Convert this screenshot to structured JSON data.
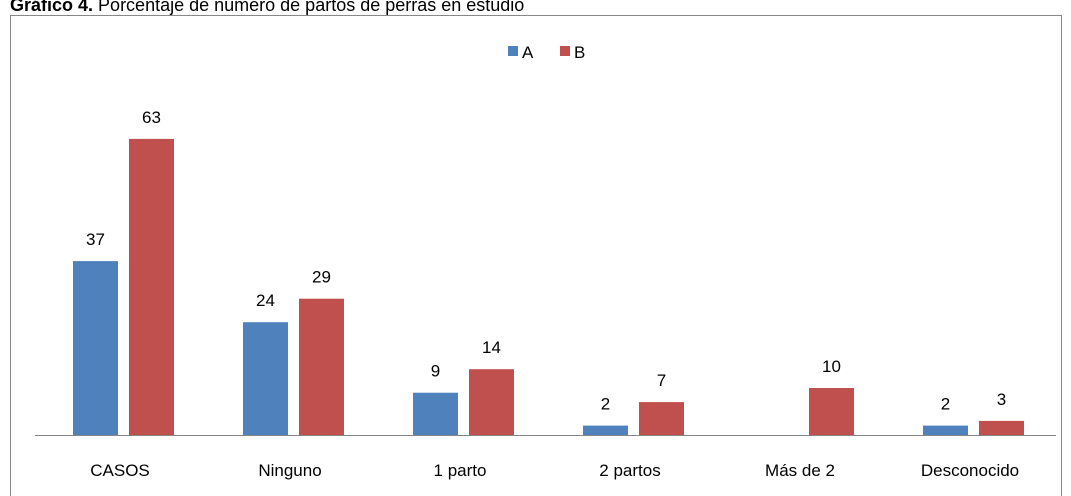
{
  "chart_data": {
    "type": "bar",
    "title_prefix": "Gráfico 4.",
    "title": "Porcentaje de número de partos de perras en estudio",
    "categories": [
      "CASOS",
      "Ninguno",
      "1 parto",
      "2 partos",
      "Más de 2",
      "Desconocido"
    ],
    "series": [
      {
        "name": "A",
        "color": "#4f81bd",
        "values": [
          37,
          24,
          9,
          2,
          null,
          2
        ]
      },
      {
        "name": "B",
        "color": "#c0504d",
        "values": [
          63,
          29,
          14,
          7,
          10,
          3
        ]
      }
    ],
    "legend": "top"
  }
}
